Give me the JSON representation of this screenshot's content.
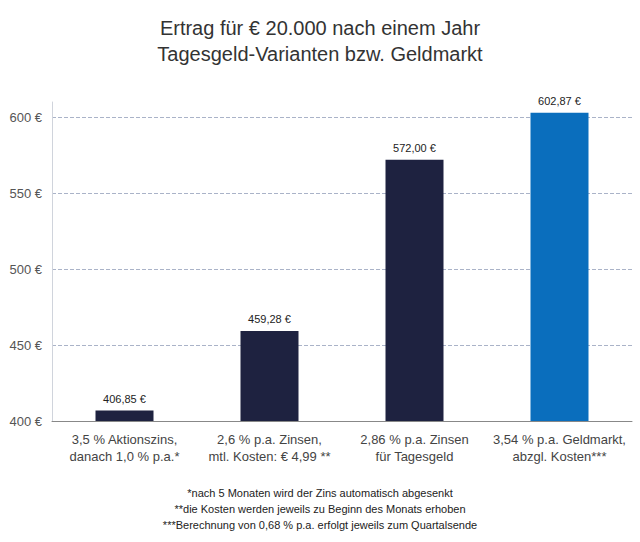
{
  "chart_data": {
    "type": "bar",
    "title": "Ertrag für € 20.000 nach einem Jahr\nTagesgeld-Varianten bzw. Geldmarkt",
    "categories": [
      "3,5 % Aktionszins,\ndanach 1,0 % p.a.*",
      "2,6 % p.a. Zinsen,\nmtl. Kosten: € 4,99 **",
      "2,86 % p.a. Zinsen\nfür Tagesgeld",
      "3,54 % p.a. Geldmarkt,\nabzgl. Kosten***"
    ],
    "values": [
      406.85,
      459.28,
      572.0,
      602.87
    ],
    "value_labels": [
      "406,85 €",
      "459,28 €",
      "572,00 €",
      "602,87 €"
    ],
    "colors": [
      "#1e2240",
      "#1e2240",
      "#1e2240",
      "#0a6ebd"
    ],
    "ylim": [
      400,
      610
    ],
    "yticks": [
      {
        "value": 400,
        "label": "400 €"
      },
      {
        "value": 450,
        "label": "450 €"
      },
      {
        "value": 500,
        "label": "500 €"
      },
      {
        "value": 550,
        "label": "550 €"
      },
      {
        "value": 600,
        "label": "600 €"
      }
    ],
    "grid": true,
    "data_labels": true,
    "annotations": [
      "*nach 5 Monaten wird der Zins automatisch abgesenkt",
      "**die Kosten werden jeweils zu Beginn des Monats erhoben",
      "***Berechnung von 0,68 % p.a. erfolgt jeweils zum Quartalsende"
    ]
  }
}
